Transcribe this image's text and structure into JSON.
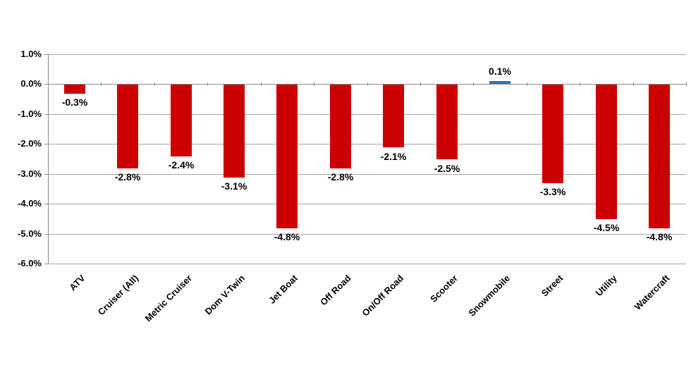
{
  "chart_data": {
    "type": "bar",
    "title": "",
    "xlabel": "",
    "ylabel": "",
    "legend": "none",
    "grid": true,
    "categories": [
      "ATV",
      "Cruiser (All)",
      "Metric Cruiser",
      "Dom V-Twin",
      "Jet Boat",
      "Off Road",
      "On/Off Road",
      "Scooter",
      "Snowmobile",
      "Street",
      "Utility",
      "Watercraft"
    ],
    "values": [
      -0.3,
      -2.8,
      -2.4,
      -3.1,
      -4.8,
      -2.8,
      -2.1,
      -2.5,
      0.1,
      -3.3,
      -4.5,
      -4.8
    ],
    "data_labels": [
      "-0.3%",
      "-2.8%",
      "-2.4%",
      "-3.1%",
      "-4.8%",
      "-2.8%",
      "-2.1%",
      "-2.5%",
      "0.1%",
      "-3.3%",
      "-4.5%",
      "-4.8%"
    ],
    "bar_colors": [
      "#cc0000",
      "#cc0000",
      "#cc0000",
      "#cc0000",
      "#cc0000",
      "#cc0000",
      "#cc0000",
      "#cc0000",
      "#2e75b6",
      "#cc0000",
      "#cc0000",
      "#cc0000"
    ],
    "ylim": [
      -6.0,
      1.0
    ],
    "ytick_step": 1.0,
    "yticks": [
      1.0,
      0.0,
      -1.0,
      -2.0,
      -3.0,
      -4.0,
      -5.0,
      -6.0
    ],
    "ytick_labels": [
      "1.0%",
      "0.0%",
      "-1.0%",
      "-2.0%",
      "-3.0%",
      "-4.0%",
      "-5.0%",
      "-6.0%"
    ],
    "colors": {
      "negative_bar": "#cc0000",
      "positive_bar": "#2e75b6",
      "gridline": "#a6a6a6",
      "axis": "#8c8c8c",
      "text": "#000000",
      "background": "#ffffff"
    }
  }
}
